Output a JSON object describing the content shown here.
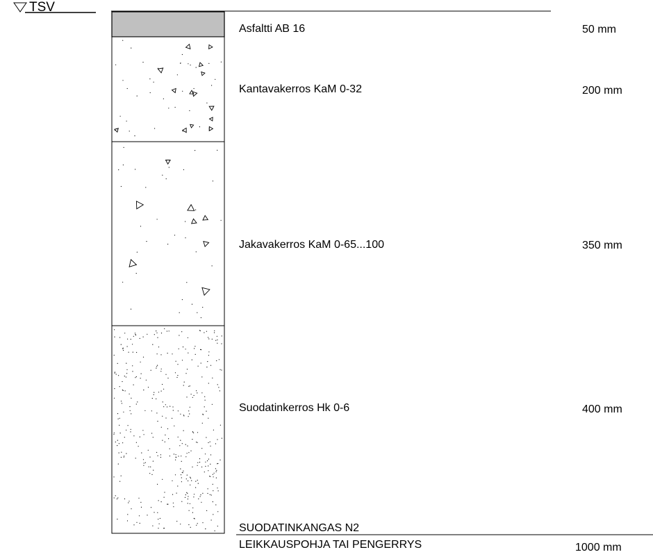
{
  "reference_label": "TSV",
  "layers": [
    {
      "name": "Asfaltti AB 16",
      "thickness": "50 mm",
      "fill": "asphalt"
    },
    {
      "name": "Kantavakerros KaM 0-32",
      "thickness": "200 mm",
      "fill": "crushed-stone"
    },
    {
      "name": "Jakavakerros KaM 0-65...100",
      "thickness": "350 mm",
      "fill": "coarse-crushed-stone"
    },
    {
      "name": "Suodatinkerros Hk 0-6",
      "thickness": "400 mm",
      "fill": "sand"
    }
  ],
  "geotextile_label": "SUODATINKANGAS N2",
  "subgrade_label": "LEIKKAUSPOHJA TAI PENGERRYS",
  "total_thickness": "1000 mm",
  "colors": {
    "asphalt": "#c0c0c0",
    "line": "#000000"
  }
}
